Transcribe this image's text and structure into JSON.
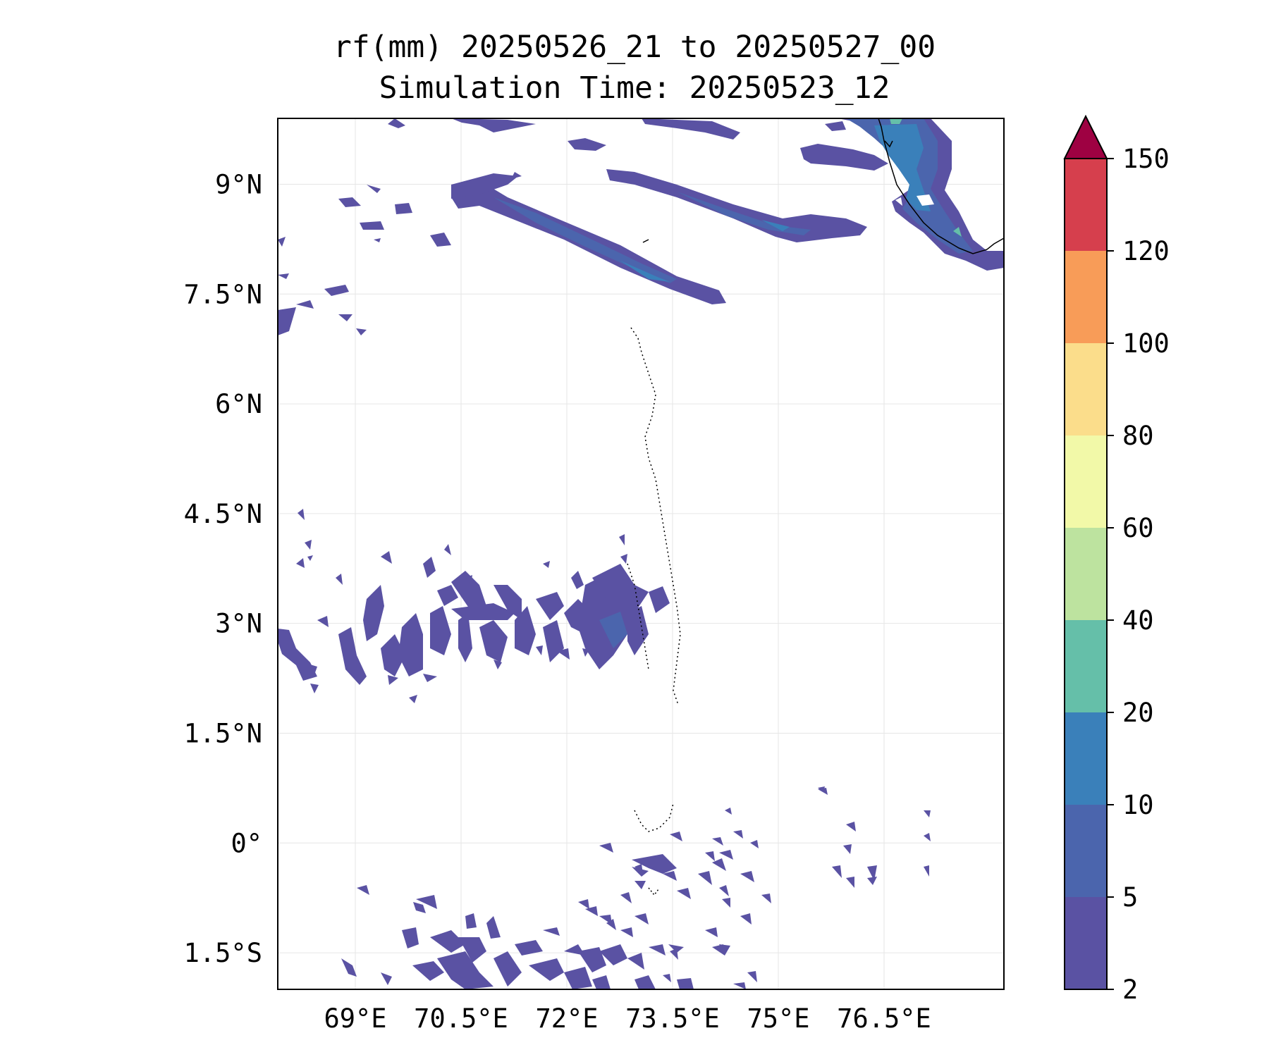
{
  "title": {
    "line1": "rf(mm) 20250526_21 to 20250527_00",
    "line2": "Simulation Time: 20250523_12"
  },
  "map": {
    "extent_lon": [
      67.9,
      78.2
    ],
    "extent_lat": [
      -2.0,
      9.9
    ],
    "lon_ticks": [
      {
        "value": 69.0,
        "label": "69°E"
      },
      {
        "value": 70.5,
        "label": "70.5°E"
      },
      {
        "value": 72.0,
        "label": "72°E"
      },
      {
        "value": 73.5,
        "label": "73.5°E"
      },
      {
        "value": 75.0,
        "label": "75°E"
      },
      {
        "value": 76.5,
        "label": "76.5°E"
      }
    ],
    "lat_ticks": [
      {
        "value": 9.0,
        "label": "9°N"
      },
      {
        "value": 7.5,
        "label": "7.5°N"
      },
      {
        "value": 6.0,
        "label": "6°N"
      },
      {
        "value": 4.5,
        "label": "4.5°N"
      },
      {
        "value": 3.0,
        "label": "3°N"
      },
      {
        "value": 1.5,
        "label": "1.5°N"
      },
      {
        "value": 0.0,
        "label": "0°"
      },
      {
        "value": -1.5,
        "label": "1.5°S"
      }
    ],
    "gridlines": true,
    "gridline_color": "#e6e6e6"
  },
  "colorbar": {
    "levels": [
      "2",
      "5",
      "10",
      "20",
      "40",
      "60",
      "80",
      "100",
      "120",
      "150"
    ],
    "colors": [
      "#5a52a3",
      "#4b65ad",
      "#3a80ba",
      "#65bfa9",
      "#bde39f",
      "#f2f9a8",
      "#fbdd8b",
      "#f89c58",
      "#d63f4d"
    ],
    "extend_color": "#9e0142",
    "extend": "max"
  }
}
